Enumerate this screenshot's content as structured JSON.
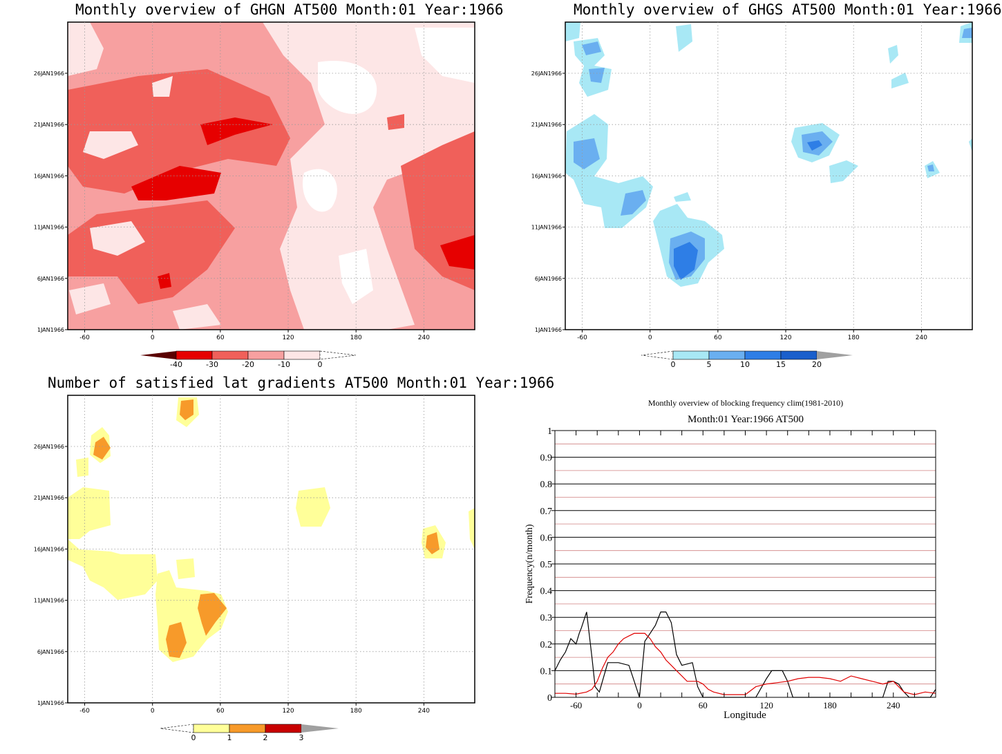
{
  "chart_data": [
    {
      "type": "heatmap",
      "title": "Monthly overview of GHGN AT500 Month:01 Year:1966",
      "x_ticks": [
        "-60",
        "0",
        "60",
        "120",
        "180",
        "240"
      ],
      "y_ticks": [
        "1JAN1966",
        "6JAN1966",
        "11JAN1966",
        "16JAN1966",
        "21JAN1966",
        "26JAN1966"
      ],
      "colorbar": {
        "levels": [
          "-40",
          "-30",
          "-20",
          "-10",
          "0"
        ],
        "colors": [
          "#5a0000",
          "#e60000",
          "#f0605a",
          "#f7a0a0",
          "#fde6e6"
        ]
      }
    },
    {
      "type": "heatmap",
      "title": "Monthly overview of GHGS AT500 Month:01 Year:1966",
      "x_ticks": [
        "-60",
        "0",
        "60",
        "120",
        "180",
        "240"
      ],
      "y_ticks": [
        "1JAN1966",
        "6JAN1966",
        "11JAN1966",
        "16JAN1966",
        "21JAN1966",
        "26JAN1966"
      ],
      "colorbar": {
        "levels": [
          "0",
          "5",
          "10",
          "15",
          "20"
        ],
        "colors": [
          "#a8e8f5",
          "#6aaff0",
          "#2e7ee6",
          "#1a5fcc",
          "#a0a0a0"
        ]
      }
    },
    {
      "type": "heatmap",
      "title": "Number of satisfied lat gradients AT500 Month:01 Year:1966",
      "x_ticks": [
        "-60",
        "0",
        "60",
        "120",
        "180",
        "240"
      ],
      "y_ticks": [
        "1JAN1966",
        "6JAN1966",
        "11JAN1966",
        "16JAN1966",
        "21JAN1966",
        "26JAN1966"
      ],
      "colorbar": {
        "levels": [
          "0",
          "1",
          "2",
          "3"
        ],
        "colors": [
          "#ffff99",
          "#f79a2a",
          "#c80000",
          "#a0a0a0"
        ]
      }
    },
    {
      "type": "line",
      "title": "Monthly overview of blocking frequency clim(1981-2010)",
      "subtitle": "Month:01 Year:1966  AT500",
      "xlabel": "Longitude",
      "ylabel": "Frequency(n/month)",
      "xlim": [
        -80,
        280
      ],
      "ylim": [
        0,
        1
      ],
      "x_ticks": [
        "-60",
        "0",
        "60",
        "120",
        "180",
        "240"
      ],
      "y_ticks": [
        "0",
        "0.1",
        "0.2",
        "0.3",
        "0.4",
        "0.5",
        "0.6",
        "0.7",
        "0.8",
        "0.9",
        "1"
      ],
      "grid": true,
      "series": [
        {
          "color": "#000000",
          "x": [
            -80,
            -75,
            -70,
            -65,
            -60,
            -57,
            -55,
            -50,
            -45,
            -42,
            -38,
            -30,
            -20,
            -10,
            -5,
            0,
            5,
            10,
            15,
            20,
            25,
            30,
            35,
            40,
            50,
            55,
            60,
            65,
            70,
            80,
            90,
            100,
            110,
            120,
            125,
            135,
            140,
            145,
            150,
            155,
            160,
            170,
            180,
            190,
            200,
            210,
            220,
            230,
            235,
            240,
            245,
            250,
            255,
            260,
            270,
            275,
            280
          ],
          "values": [
            0.1,
            0.14,
            0.17,
            0.22,
            0.2,
            0.24,
            0.26,
            0.32,
            0.15,
            0.04,
            0.02,
            0.13,
            0.13,
            0.12,
            0.06,
            0.0,
            0.21,
            0.24,
            0.27,
            0.32,
            0.32,
            0.28,
            0.16,
            0.12,
            0.13,
            0.04,
            0.0,
            0.0,
            0.0,
            0.0,
            0.0,
            0.0,
            0.0,
            0.07,
            0.1,
            0.1,
            0.06,
            0.0,
            0.0,
            0.0,
            0.0,
            0.0,
            0.0,
            0.0,
            0.0,
            0.0,
            0.0,
            0.0,
            0.06,
            0.06,
            0.05,
            0.02,
            0.0,
            0.0,
            0.0,
            0.0,
            0.03
          ]
        },
        {
          "color": "#e00000",
          "x": [
            -80,
            -70,
            -60,
            -50,
            -45,
            -40,
            -35,
            -30,
            -25,
            -20,
            -15,
            -10,
            -5,
            0,
            5,
            10,
            15,
            20,
            25,
            30,
            35,
            40,
            45,
            50,
            55,
            60,
            65,
            70,
            80,
            90,
            100,
            110,
            120,
            130,
            140,
            150,
            160,
            170,
            180,
            190,
            200,
            210,
            220,
            230,
            240,
            250,
            260,
            270,
            280
          ],
          "values": [
            0.015,
            0.015,
            0.012,
            0.02,
            0.03,
            0.06,
            0.11,
            0.15,
            0.17,
            0.2,
            0.22,
            0.23,
            0.24,
            0.24,
            0.24,
            0.22,
            0.19,
            0.17,
            0.14,
            0.12,
            0.1,
            0.08,
            0.06,
            0.06,
            0.06,
            0.05,
            0.03,
            0.02,
            0.01,
            0.01,
            0.01,
            0.04,
            0.05,
            0.055,
            0.06,
            0.07,
            0.075,
            0.075,
            0.07,
            0.06,
            0.08,
            0.07,
            0.06,
            0.05,
            0.06,
            0.02,
            0.01,
            0.02,
            0.015
          ]
        }
      ]
    }
  ]
}
